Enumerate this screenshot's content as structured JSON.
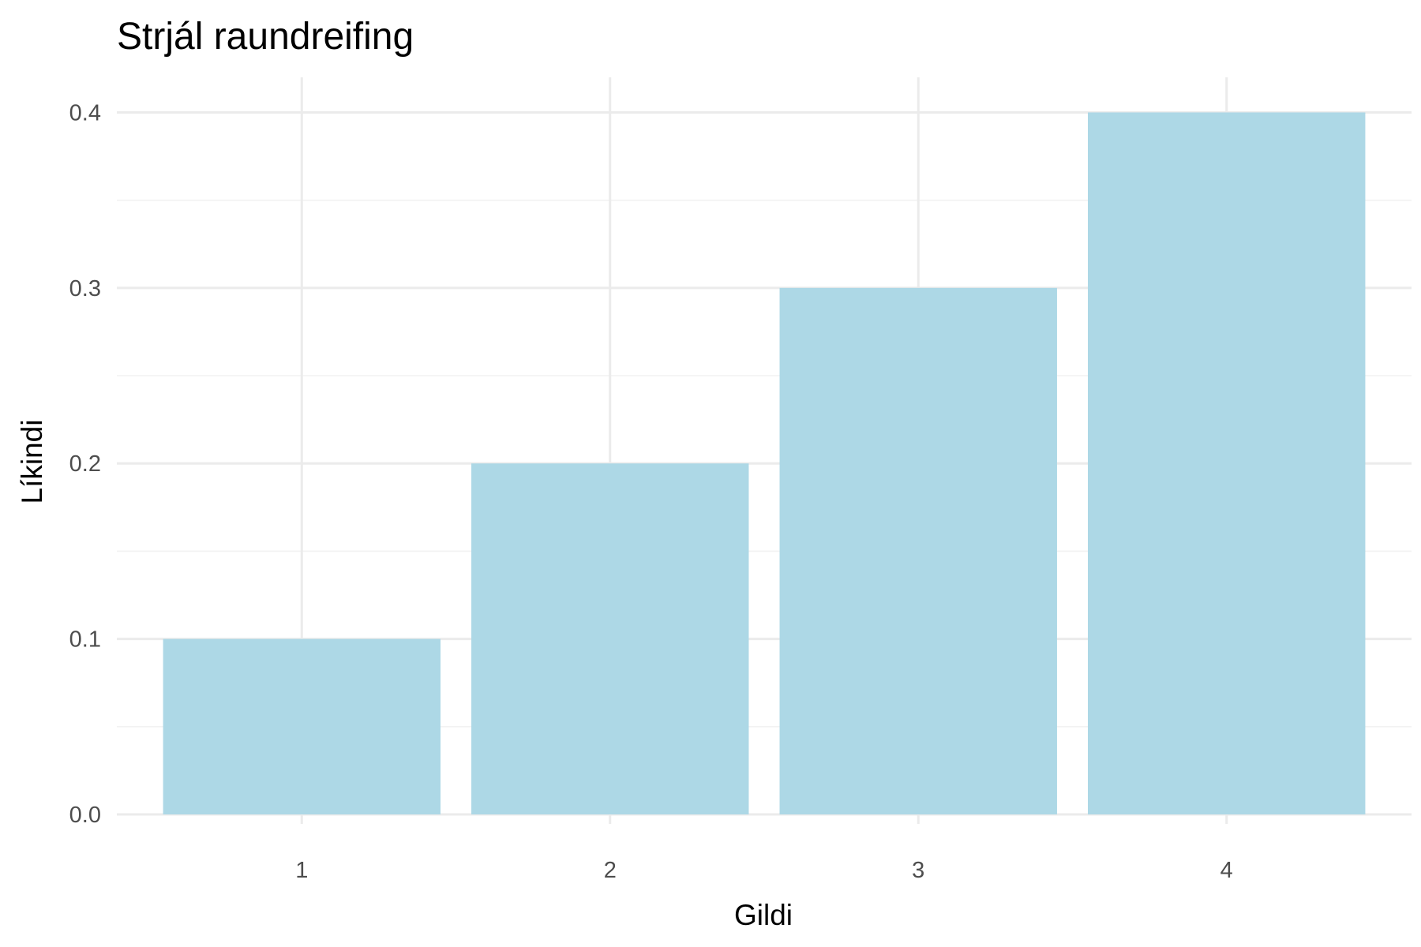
{
  "chart_data": {
    "type": "bar",
    "title": "Strjál raundreifing",
    "xlabel": "Gildi",
    "ylabel": "Líkindi",
    "categories": [
      "1",
      "2",
      "3",
      "4"
    ],
    "values": [
      0.1,
      0.2,
      0.3,
      0.4
    ],
    "ylim": [
      0,
      0.42
    ],
    "yticks": [
      "0.0",
      "0.1",
      "0.2",
      "0.3",
      "0.4"
    ],
    "ytick_values": [
      0,
      0.1,
      0.2,
      0.3,
      0.4
    ],
    "grid": true,
    "legend": "none",
    "colors": {
      "bar": "#add8e6",
      "grid": "#ebebeb",
      "background": "#ffffff"
    }
  }
}
